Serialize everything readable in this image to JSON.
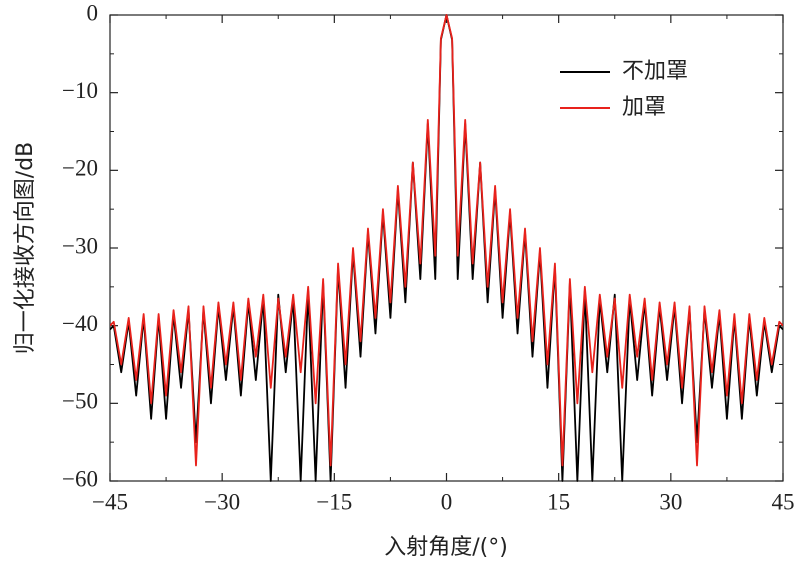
{
  "chart_data": {
    "type": "line",
    "xlabel": "入射角度/(°)",
    "ylabel": "归一化接收方向图/dB",
    "xlim": [
      -45,
      45
    ],
    "ylim": [
      -60,
      0
    ],
    "xticks": [
      {
        "value": -45,
        "label": "−45"
      },
      {
        "value": -30,
        "label": "−30"
      },
      {
        "value": -15,
        "label": "−15"
      },
      0,
      15,
      30,
      45
    ],
    "yticks": [
      {
        "value": -60,
        "label": "−60"
      },
      {
        "value": -50,
        "label": "−50"
      },
      {
        "value": -40,
        "label": "−40"
      },
      {
        "value": -30,
        "label": "−30"
      },
      {
        "value": -20,
        "label": "−20"
      },
      {
        "value": -10,
        "label": "−10"
      },
      0
    ],
    "legend": "upper right",
    "x": [
      -45,
      -44.5,
      -43.5,
      -42.5,
      -41.5,
      -40.5,
      -39.5,
      -38.5,
      -37.5,
      -36.5,
      -35.5,
      -34.5,
      -33.5,
      -32.5,
      -31.5,
      -30.5,
      -29.5,
      -28.5,
      -27.5,
      -26.5,
      -25.5,
      -24.5,
      -23.5,
      -22.5,
      -21.5,
      -20.5,
      -19.5,
      -18.5,
      -17.5,
      -16.5,
      -15.5,
      -14.5,
      -13.5,
      -12.5,
      -11.5,
      -10.5,
      -9.5,
      -8.5,
      -7.5,
      -6.5,
      -5.5,
      -4.5,
      -3.5,
      -2.5,
      -1.5,
      -0.75,
      0,
      0.75,
      1.5,
      2.5,
      3.5,
      4.5,
      5.5,
      6.5,
      7.5,
      8.5,
      9.5,
      10.5,
      11.5,
      12.5,
      13.5,
      14.5,
      15.5,
      16.5,
      17.5,
      18.5,
      19.5,
      20.5,
      21.5,
      22.5,
      23.5,
      24.5,
      25.5,
      26.5,
      27.5,
      28.5,
      29.5,
      30.5,
      31.5,
      32.5,
      33.5,
      34.5,
      35.5,
      36.5,
      37.5,
      38.5,
      39.5,
      40.5,
      41.5,
      42.5,
      43.5,
      44.5,
      45
    ],
    "series": [
      {
        "name": "不加罩",
        "color": "#000000",
        "values": [
          -40.5,
          -40,
          -46,
          -39.5,
          -49,
          -39,
          -52,
          -39,
          -52,
          -38.5,
          -48,
          -38,
          -55,
          -38,
          -50,
          -37.5,
          -47,
          -37.5,
          -49,
          -37,
          -47,
          -36.5,
          -60,
          -36,
          -46,
          -36.5,
          -60,
          -35.5,
          -60,
          -34.5,
          -60,
          -32.5,
          -48,
          -30.5,
          -44,
          -28,
          -41,
          -25.5,
          -39,
          -22.5,
          -37,
          -19,
          -34,
          -14,
          -34,
          -3.2,
          0,
          -3.2,
          -34,
          -14,
          -34,
          -19,
          -37,
          -22.5,
          -39,
          -25.5,
          -41,
          -28,
          -44,
          -30.5,
          -48,
          -32.5,
          -60,
          -34.5,
          -60,
          -35.5,
          -60,
          -36.5,
          -46,
          -36,
          -60,
          -36.5,
          -47,
          -37,
          -49,
          -37.5,
          -47,
          -37.5,
          -50,
          -38,
          -55,
          -38,
          -48,
          -38.5,
          -52,
          -39,
          -52,
          -39,
          -49,
          -39.5,
          -46,
          -40,
          -40.5
        ]
      },
      {
        "name": "加罩",
        "color": "#e8221c",
        "values": [
          -40,
          -39.5,
          -45,
          -39,
          -47,
          -38.5,
          -50,
          -38.5,
          -49,
          -38,
          -46,
          -37.5,
          -58,
          -37.5,
          -48,
          -37,
          -45,
          -37,
          -47,
          -36.5,
          -44,
          -36,
          -48,
          -36.5,
          -44,
          -36,
          -46,
          -35,
          -50,
          -34,
          -58,
          -32,
          -45,
          -30,
          -42,
          -27.5,
          -39,
          -25,
          -37,
          -22,
          -35,
          -19,
          -32,
          -13.5,
          -31,
          -3,
          0,
          -3,
          -31,
          -13.5,
          -32,
          -19,
          -35,
          -22,
          -37,
          -25,
          -39,
          -27.5,
          -42,
          -30,
          -45,
          -32,
          -58,
          -34,
          -50,
          -35,
          -46,
          -36,
          -44,
          -36.5,
          -48,
          -36,
          -44,
          -36.5,
          -47,
          -37,
          -45,
          -37,
          -48,
          -37.5,
          -58,
          -37.5,
          -46,
          -38,
          -49,
          -38.5,
          -50,
          -38.5,
          -47,
          -39,
          -45,
          -39.5,
          -40
        ]
      }
    ]
  }
}
